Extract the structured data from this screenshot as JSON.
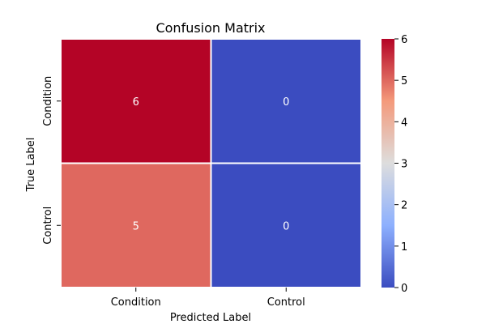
{
  "chart_data": {
    "type": "heatmap",
    "title": "Confusion Matrix",
    "xlabel": "Predicted Label",
    "ylabel": "True Label",
    "x_categories": [
      "Condition",
      "Control"
    ],
    "y_categories": [
      "Condition",
      "Control"
    ],
    "values": [
      [
        6,
        0
      ],
      [
        5,
        0
      ]
    ],
    "colormap": "coolwarm",
    "vmin": 0,
    "vmax": 6,
    "colorbar_ticks": [
      "0",
      "1",
      "2",
      "3",
      "4",
      "5",
      "6"
    ],
    "colors": {
      "low": "#3b4cc0",
      "mid": "#dddddd",
      "high": "#b40426",
      "cell_border": "#ffffff"
    },
    "grid": false,
    "colorbar": "right"
  }
}
